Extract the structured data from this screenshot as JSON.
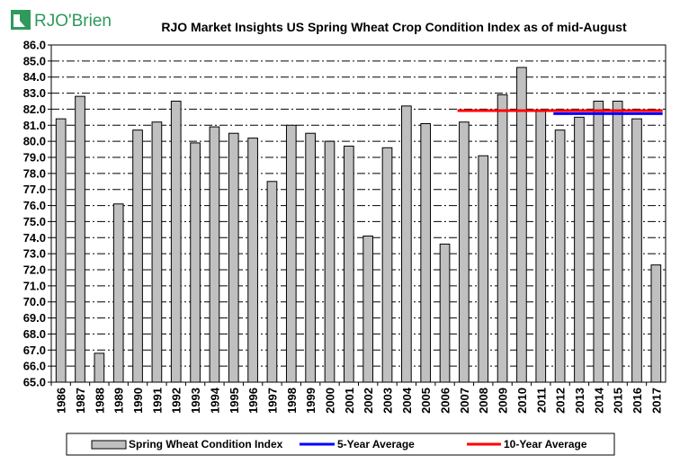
{
  "logo": {
    "text": "RJO'Brien",
    "color": "#2e9a5c"
  },
  "chart_data": {
    "type": "bar",
    "title": "RJO Market Insights US Spring Wheat Crop Condition Index as of mid-August",
    "xlabel": "",
    "ylabel": "",
    "ylim": [
      65.0,
      86.0
    ],
    "ytick_step": 1.0,
    "grid": true,
    "categories": [
      "1986",
      "1987",
      "1988",
      "1989",
      "1990",
      "1991",
      "1992",
      "1993",
      "1994",
      "1995",
      "1996",
      "1997",
      "1998",
      "1999",
      "2000",
      "2001",
      "2002",
      "2003",
      "2004",
      "2005",
      "2006",
      "2007",
      "2008",
      "2009",
      "2010",
      "2011",
      "2012",
      "2013",
      "2014",
      "2015",
      "2016",
      "2017"
    ],
    "series": [
      {
        "name": "Spring Wheat Condition Index",
        "color": "#c0c0c0",
        "values": [
          81.4,
          82.8,
          66.8,
          76.1,
          80.7,
          81.2,
          82.5,
          79.9,
          80.9,
          80.5,
          80.2,
          77.5,
          81.0,
          80.5,
          80.0,
          79.7,
          74.1,
          79.6,
          82.2,
          81.1,
          73.6,
          81.2,
          79.1,
          82.9,
          84.6,
          81.9,
          80.7,
          81.5,
          82.5,
          82.5,
          81.4,
          72.3
        ]
      }
    ],
    "reference_lines": [
      {
        "name": "5-Year Average",
        "color": "#0000ff",
        "value": 81.72,
        "from": "2012",
        "to": "2017"
      },
      {
        "name": "10-Year Average",
        "color": "#ff0000",
        "value": 81.91,
        "from": "2007",
        "to": "2017"
      }
    ],
    "legend": {
      "position": "bottom",
      "entries": [
        {
          "label": "Spring Wheat Condition Index",
          "kind": "bar",
          "color": "#c0c0c0"
        },
        {
          "label": "5-Year Average",
          "kind": "line",
          "color": "#0000ff"
        },
        {
          "label": "10-Year Average",
          "kind": "line",
          "color": "#ff0000"
        }
      ]
    }
  }
}
